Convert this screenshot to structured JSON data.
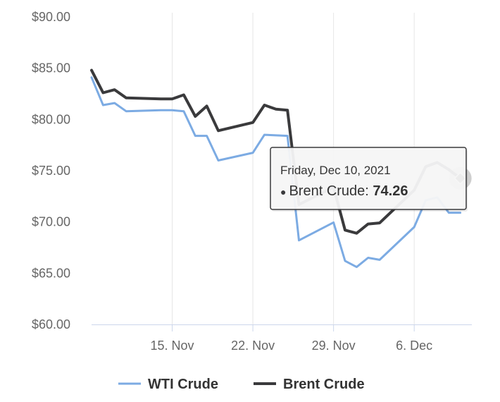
{
  "chart_data": {
    "type": "line",
    "title": "",
    "xlabel": "",
    "ylabel": "",
    "ylim": [
      60,
      90
    ],
    "y_ticks": [
      "$60.00",
      "$65.00",
      "$70.00",
      "$75.00",
      "$80.00",
      "$85.00",
      "$90.00"
    ],
    "x_ticks": [
      {
        "date": "2021-11-15",
        "label": "15. Nov"
      },
      {
        "date": "2021-11-22",
        "label": "22. Nov"
      },
      {
        "date": "2021-11-29",
        "label": "29. Nov"
      },
      {
        "date": "2021-12-06",
        "label": "6. Dec"
      }
    ],
    "xlim": [
      "2021-11-08",
      "2021-12-11"
    ],
    "grid": {
      "vertical": true,
      "horizontal": false
    },
    "legend_position": "bottom",
    "series": [
      {
        "name": "WTI Crude",
        "color": "#7cabe3",
        "points": [
          [
            "2021-11-08",
            84.1
          ],
          [
            "2021-11-09",
            81.4
          ],
          [
            "2021-11-10",
            81.6
          ],
          [
            "2021-11-11",
            80.8
          ],
          [
            "2021-11-14",
            80.9
          ],
          [
            "2021-11-15",
            80.9
          ],
          [
            "2021-11-16",
            80.8
          ],
          [
            "2021-11-17",
            78.4
          ],
          [
            "2021-11-18",
            78.4
          ],
          [
            "2021-11-19",
            76.0
          ],
          [
            "2021-11-22",
            76.75
          ],
          [
            "2021-11-23",
            78.5
          ],
          [
            "2021-11-25",
            78.4
          ],
          [
            "2021-11-26",
            68.2
          ],
          [
            "2021-11-29",
            69.95
          ],
          [
            "2021-11-30",
            66.2
          ],
          [
            "2021-12-01",
            65.6
          ],
          [
            "2021-12-02",
            66.5
          ],
          [
            "2021-12-03",
            66.3
          ],
          [
            "2021-12-06",
            69.5
          ],
          [
            "2021-12-07",
            72.1
          ],
          [
            "2021-12-08",
            72.4
          ],
          [
            "2021-12-09",
            70.9
          ],
          [
            "2021-12-10",
            70.9
          ]
        ]
      },
      {
        "name": "Brent Crude",
        "color": "#3a3a3c",
        "points": [
          [
            "2021-11-08",
            84.8
          ],
          [
            "2021-11-09",
            82.6
          ],
          [
            "2021-11-10",
            82.9
          ],
          [
            "2021-11-11",
            82.1
          ],
          [
            "2021-11-14",
            82.0
          ],
          [
            "2021-11-15",
            82.0
          ],
          [
            "2021-11-16",
            82.4
          ],
          [
            "2021-11-17",
            80.3
          ],
          [
            "2021-11-18",
            81.3
          ],
          [
            "2021-11-19",
            78.9
          ],
          [
            "2021-11-22",
            79.7
          ],
          [
            "2021-11-23",
            81.4
          ],
          [
            "2021-11-24",
            81.0
          ],
          [
            "2021-11-25",
            80.9
          ],
          [
            "2021-11-26",
            71.7
          ],
          [
            "2021-11-29",
            73.4
          ],
          [
            "2021-11-30",
            69.2
          ],
          [
            "2021-12-01",
            68.9
          ],
          [
            "2021-12-02",
            69.8
          ],
          [
            "2021-12-03",
            69.9
          ],
          [
            "2021-12-06",
            73.1
          ],
          [
            "2021-12-07",
            75.4
          ],
          [
            "2021-12-08",
            75.8
          ],
          [
            "2021-12-09",
            75.1
          ],
          [
            "2021-12-10",
            74.26
          ]
        ]
      }
    ],
    "tooltip": {
      "date_label": "Friday, Dec 10, 2021",
      "series_name": "Brent Crude",
      "series_label": "Brent Crude: ",
      "value_label": "74.26",
      "bullet": "●",
      "point": [
        "2021-12-10",
        74.26
      ]
    }
  }
}
